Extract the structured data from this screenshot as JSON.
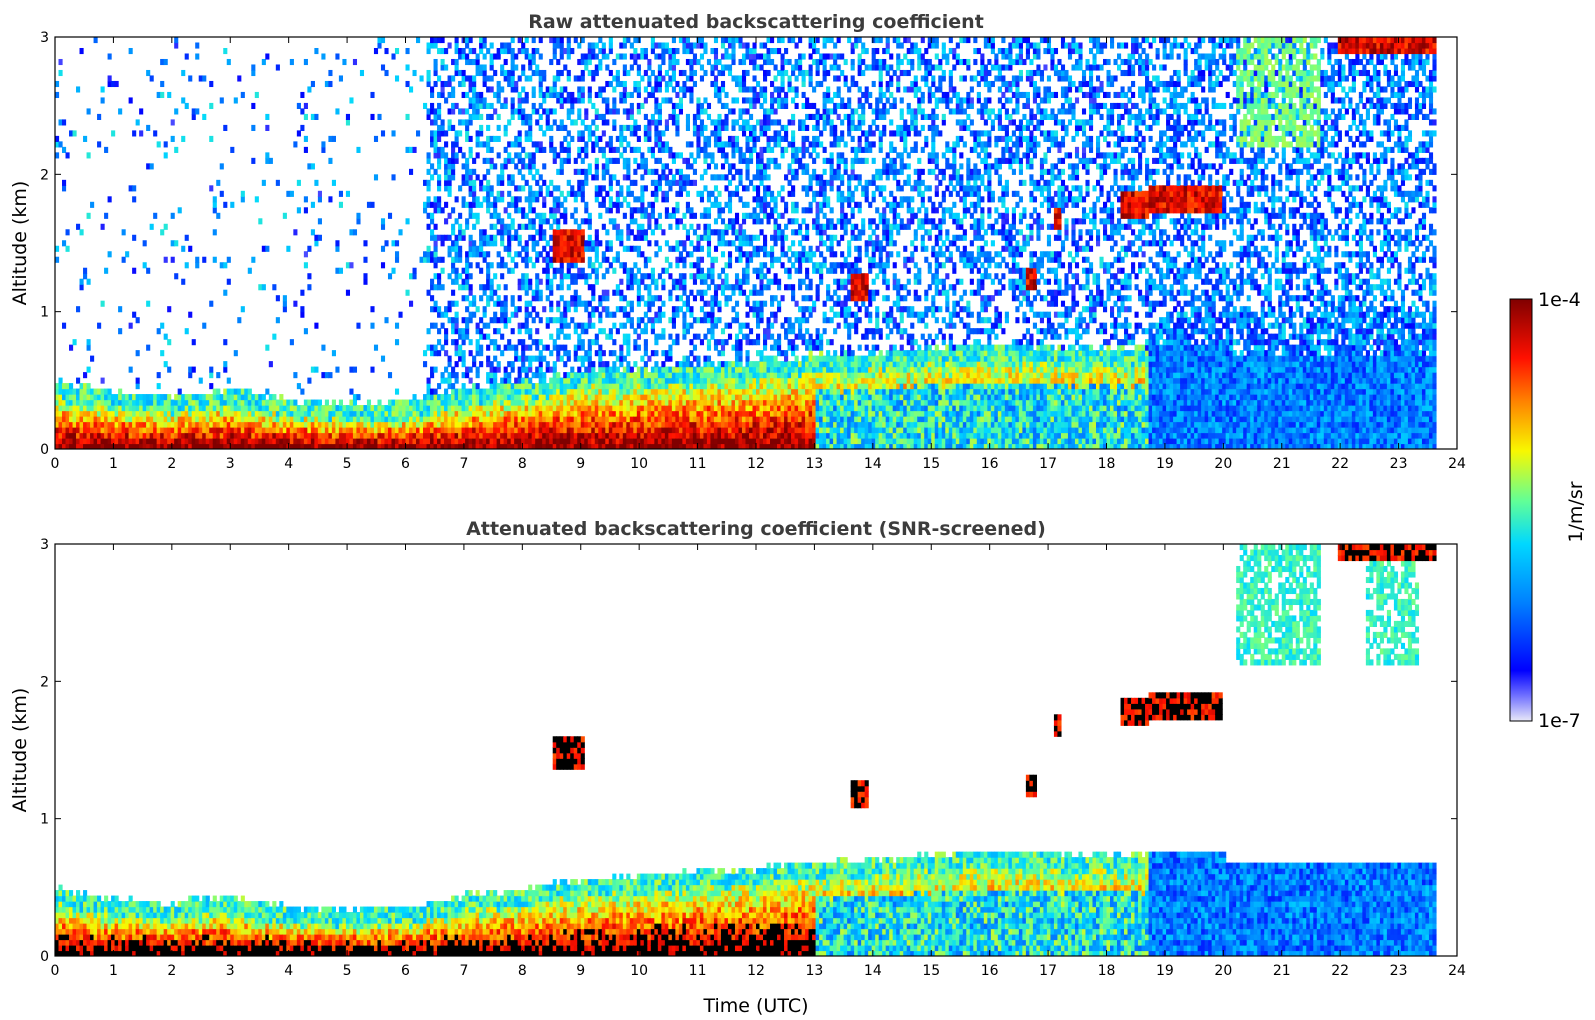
{
  "chart_data": [
    {
      "type": "heatmap",
      "title": "Raw attenuated backscattering coefficient",
      "xlabel": "",
      "ylabel": "Altitude (km)",
      "xlim": [
        0,
        24
      ],
      "ylim": [
        0,
        3
      ],
      "x_ticks": [
        "0",
        "1",
        "2",
        "3",
        "4",
        "5",
        "6",
        "7",
        "8",
        "9",
        "10",
        "11",
        "12",
        "13",
        "14",
        "15",
        "16",
        "17",
        "18",
        "19",
        "20",
        "21",
        "22",
        "23",
        "24"
      ],
      "y_ticks": [
        "0",
        "1",
        "2",
        "3"
      ],
      "data_end_time": 23.6,
      "screened": false,
      "colormap": "jet",
      "color_scale": "log",
      "features": {
        "boundary_layer_top": [
          [
            0,
            0.35
          ],
          [
            1,
            0.28
          ],
          [
            2,
            0.25
          ],
          [
            3,
            0.3
          ],
          [
            4,
            0.22
          ],
          [
            5,
            0.2
          ],
          [
            6,
            0.22
          ],
          [
            7,
            0.3
          ],
          [
            8,
            0.35
          ],
          [
            9,
            0.42
          ],
          [
            10,
            0.45
          ],
          [
            11,
            0.47
          ],
          [
            12,
            0.5
          ],
          [
            13,
            0.55
          ],
          [
            14,
            0.55
          ],
          [
            15,
            0.6
          ],
          [
            16,
            0.62
          ],
          [
            17,
            0.6
          ],
          [
            18,
            0.6
          ],
          [
            18.7,
            0.6
          ]
        ],
        "clouds": [
          {
            "t0": 8.5,
            "t1": 9.0,
            "z0": 1.35,
            "z1": 1.6
          },
          {
            "t0": 13.6,
            "t1": 13.9,
            "z0": 1.05,
            "z1": 1.25
          },
          {
            "t0": 16.6,
            "t1": 16.8,
            "z0": 1.15,
            "z1": 1.3
          },
          {
            "t0": 17.1,
            "t1": 17.2,
            "z0": 1.6,
            "z1": 1.75
          },
          {
            "t0": 18.2,
            "t1": 18.7,
            "z0": 1.65,
            "z1": 1.85
          },
          {
            "t0": 18.7,
            "t1": 19.95,
            "z0": 1.7,
            "z1": 1.9
          },
          {
            "t0": 21.9,
            "t1": 23.6,
            "z0": 2.85,
            "z1": 3.0
          }
        ]
      }
    },
    {
      "type": "heatmap",
      "title": "Attenuated backscattering coefficient (SNR-screened)",
      "xlabel": "Time (UTC)",
      "ylabel": "Altitude (km)",
      "xlim": [
        0,
        24
      ],
      "ylim": [
        0,
        3
      ],
      "x_ticks": [
        "0",
        "1",
        "2",
        "3",
        "4",
        "5",
        "6",
        "7",
        "8",
        "9",
        "10",
        "11",
        "12",
        "13",
        "14",
        "15",
        "16",
        "17",
        "18",
        "19",
        "20",
        "21",
        "22",
        "23",
        "24"
      ],
      "y_ticks": [
        "0",
        "1",
        "2",
        "3"
      ],
      "data_end_time": 23.6,
      "screened": true,
      "colormap": "jet",
      "color_scale": "log"
    }
  ],
  "colorbar": {
    "max_label": "1e-4",
    "min_label": "1e-7",
    "unit_label": "1/m/sr",
    "colors": [
      "#e8e8f8",
      "#0000ff",
      "#0080ff",
      "#00d8ff",
      "#60ff98",
      "#f8f800",
      "#ff8000",
      "#ff1000",
      "#800000"
    ]
  }
}
